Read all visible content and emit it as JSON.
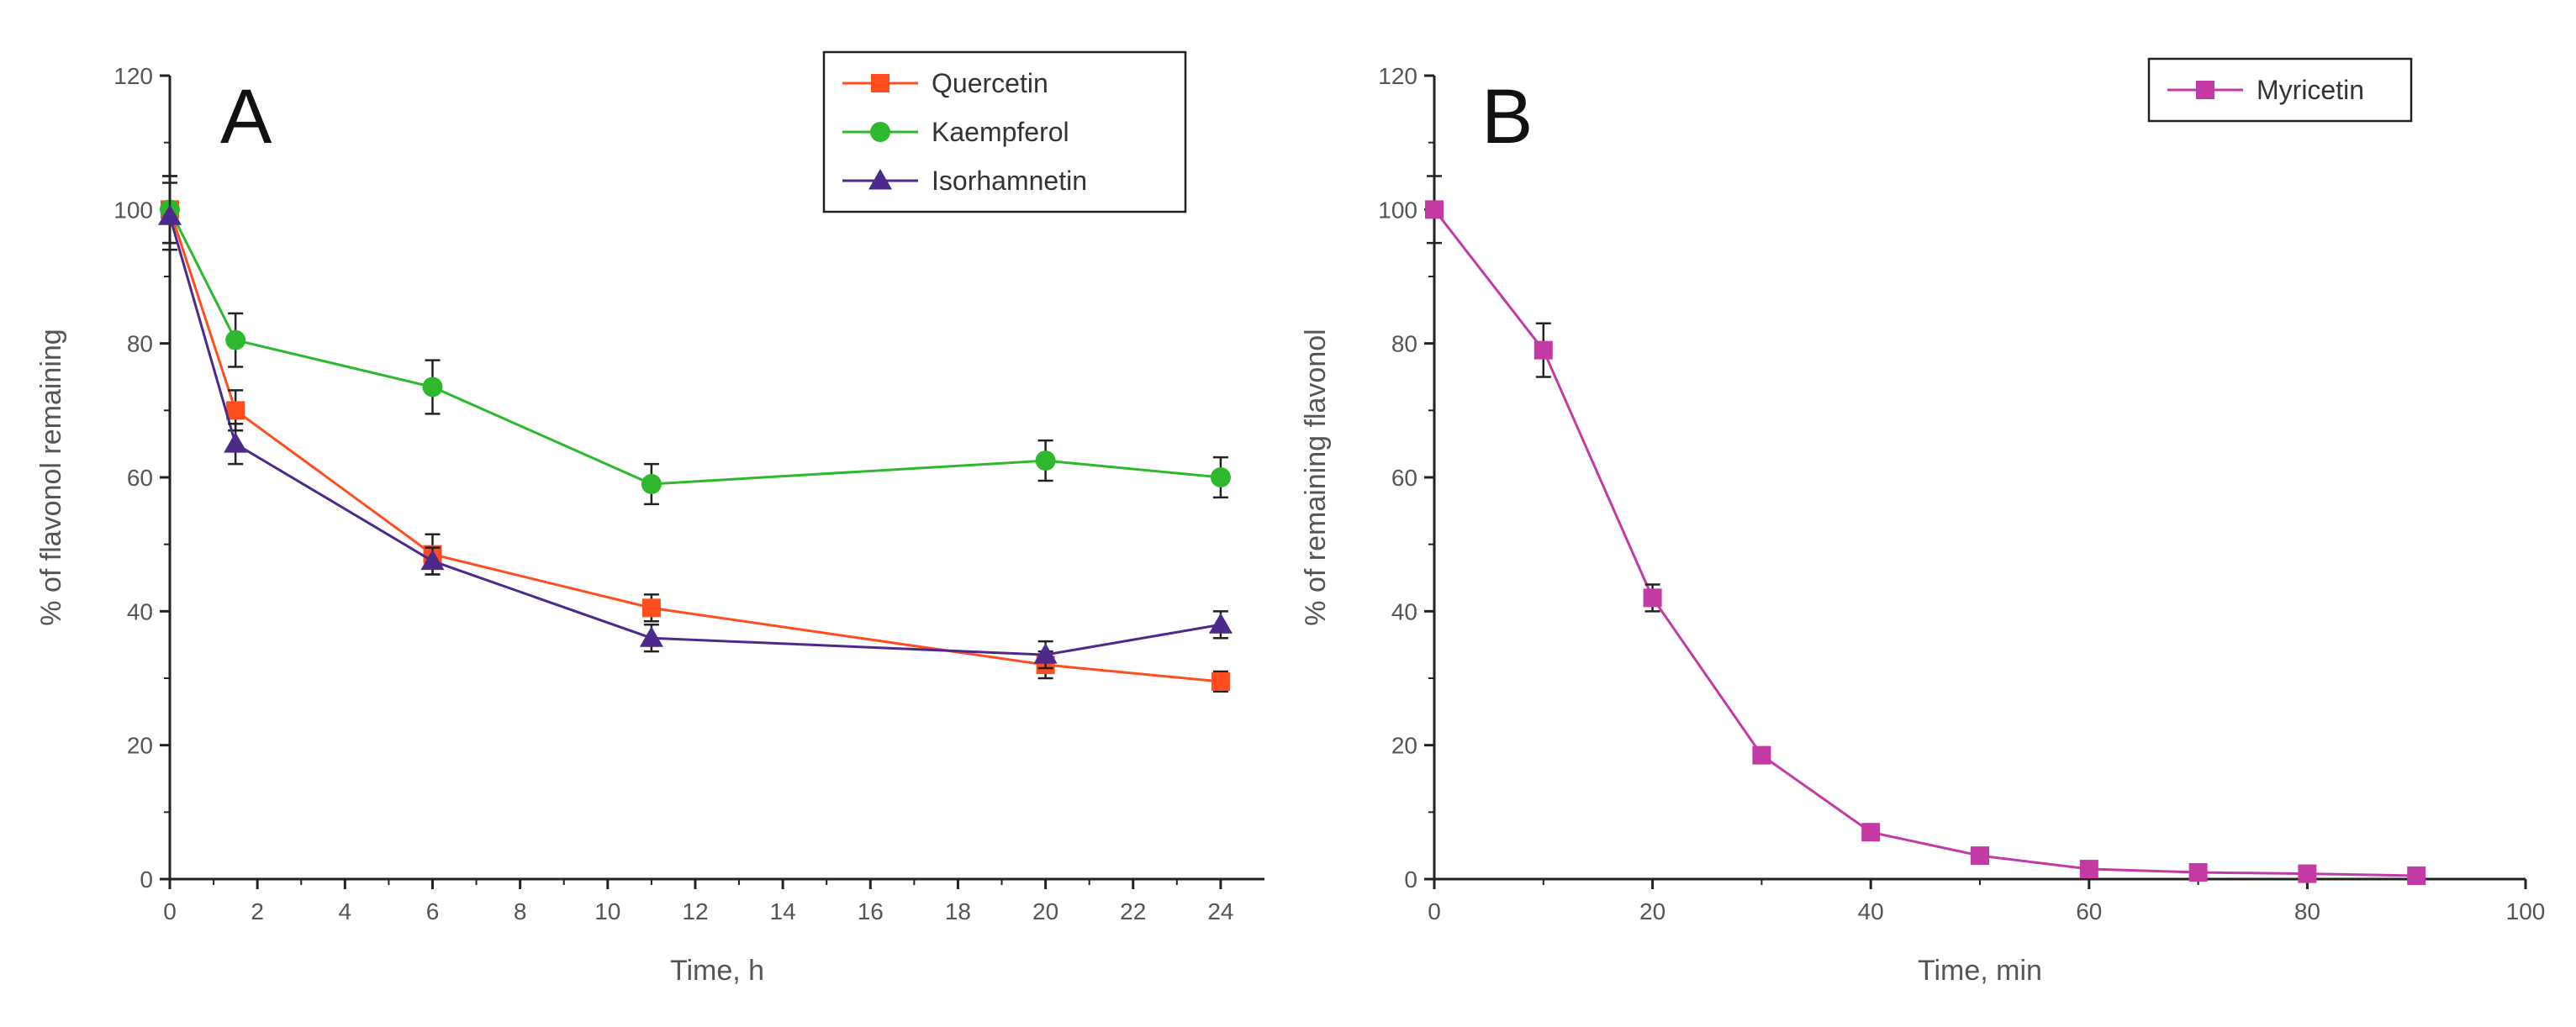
{
  "chart_data": [
    {
      "panel": "A",
      "type": "line",
      "xlabel": "Time, h",
      "ylabel": "% of flavonol remaining",
      "xlim": [
        0,
        25
      ],
      "ylim": [
        0,
        120
      ],
      "xticks": [
        0,
        2,
        4,
        6,
        8,
        10,
        12,
        14,
        16,
        18,
        20,
        22,
        24
      ],
      "yticks": [
        0,
        20,
        40,
        60,
        80,
        100,
        120
      ],
      "grid": false,
      "legend_position": "top-right",
      "series": [
        {
          "name": "Quercetin",
          "color": "#ff4d1f",
          "marker": "square",
          "x": [
            0,
            1.5,
            6,
            11,
            20,
            24
          ],
          "y": [
            100,
            70,
            48.5,
            40.5,
            32,
            29.5
          ],
          "err": [
            5,
            3,
            3,
            2,
            2,
            1.5
          ]
        },
        {
          "name": "Kaempferol",
          "color": "#2db82d",
          "marker": "circle",
          "x": [
            0,
            1.5,
            6,
            11,
            20,
            24
          ],
          "y": [
            100,
            80.5,
            73.5,
            59,
            62.5,
            60
          ],
          "err": [
            5,
            4,
            4,
            3,
            3,
            3
          ]
        },
        {
          "name": "Isorhamnetin",
          "color": "#4b2a8c",
          "marker": "triangle",
          "x": [
            0,
            1.5,
            6,
            11,
            20,
            24
          ],
          "y": [
            99,
            65,
            47.5,
            36,
            33.5,
            38
          ],
          "err": [
            5,
            3,
            2,
            2,
            2,
            2
          ]
        }
      ]
    },
    {
      "panel": "B",
      "type": "line",
      "xlabel": "Time, min",
      "ylabel": "% of remaining flavonol",
      "xlim": [
        0,
        100
      ],
      "ylim": [
        0,
        120
      ],
      "xticks": [
        0,
        20,
        40,
        60,
        80,
        100
      ],
      "yticks": [
        0,
        20,
        40,
        60,
        80,
        100,
        120
      ],
      "grid": false,
      "legend_position": "top-right",
      "series": [
        {
          "name": "Myricetin",
          "color": "#c43aa4",
          "marker": "square",
          "x": [
            0,
            10,
            20,
            30,
            40,
            50,
            60,
            70,
            80,
            90
          ],
          "y": [
            100,
            79,
            42,
            18.5,
            7,
            3.5,
            1.5,
            1,
            0.8,
            0.5
          ],
          "err": [
            5,
            4,
            2,
            1,
            1,
            0.5,
            0.5,
            0.5,
            0.5,
            0.5
          ]
        }
      ]
    }
  ]
}
